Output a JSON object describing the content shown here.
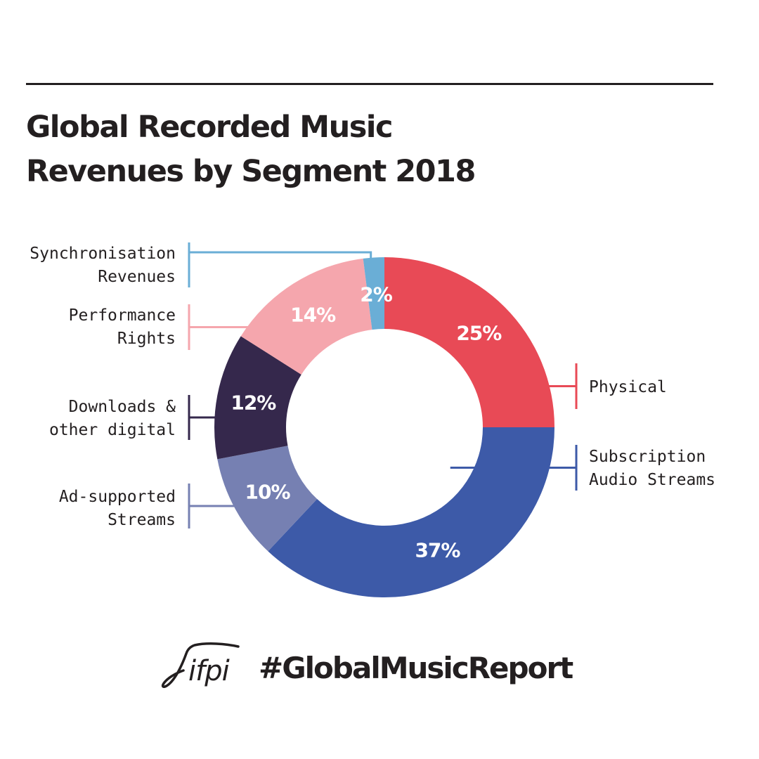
{
  "title": {
    "line1": "Global Recorded Music",
    "line2": "Revenues by Segment 2018"
  },
  "chart_data": {
    "type": "pie",
    "subtype": "donut",
    "slices": [
      {
        "label": [
          "Physical"
        ],
        "value": 25,
        "value_label": "25%",
        "color": "#e84a56"
      },
      {
        "label": [
          "Subscription",
          "Audio Streams"
        ],
        "value": 37,
        "value_label": "37%",
        "color": "#3d5aa8"
      },
      {
        "label": [
          "Ad-supported",
          "Streams"
        ],
        "value": 10,
        "value_label": "10%",
        "color": "#7680b2"
      },
      {
        "label": [
          "Downloads &",
          "other digital"
        ],
        "value": 12,
        "value_label": "12%",
        "color": "#35284c"
      },
      {
        "label": [
          "Performance",
          "Rights"
        ],
        "value": 14,
        "value_label": "14%",
        "color": "#f5a6ad"
      },
      {
        "label": [
          "Synchronisation",
          "Revenues"
        ],
        "value": 2,
        "value_label": "2%",
        "color": "#6aaed6"
      }
    ]
  },
  "footer": {
    "logo_text": "ifpi",
    "hashtag": "#GlobalMusicReport"
  }
}
